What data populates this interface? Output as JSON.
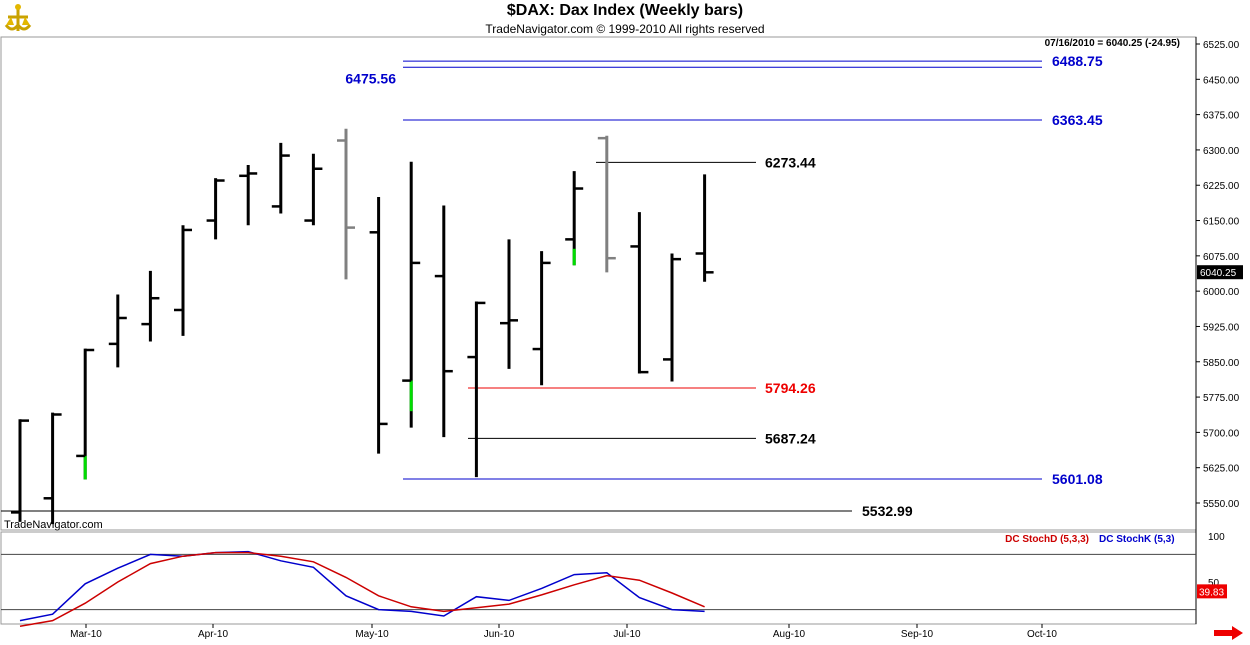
{
  "header": {
    "title": "$DAX:  Dax Index  (Weekly bars)",
    "copyright": "TradeNavigator.com © 1999-2010 All rights reserved"
  },
  "quote_label": "07/16/2010 = 6040.25 (-24.95)",
  "watermark": "TradeNavigator.com",
  "current_price_tag": "6040.25",
  "colors": {
    "bar": "#000000",
    "bar_gray": "#808080",
    "bar_green": "#00dd00",
    "level_blue": "#0000cc",
    "level_red": "#ee0000",
    "level_black": "#000000",
    "stoch_k": "#0000cc",
    "stoch_d": "#cc0000",
    "axis_tag": "#000000",
    "stoch_tag_bg": "#ee0000"
  },
  "chart_data": [
    {
      "type": "ohlc",
      "y_axis": {
        "range": [
          5500,
          6540
        ],
        "ticks": [
          "6525.00",
          "6450.00",
          "6375.00",
          "6300.00",
          "6225.00",
          "6150.00",
          "6075.00",
          "6000.00",
          "5925.00",
          "5850.00",
          "5775.00",
          "5700.00",
          "5625.00",
          "5550.00"
        ]
      },
      "x_axis": {
        "ticks": [
          "Mar-10",
          "Apr-10",
          "May-10",
          "Jun-10",
          "Jul-10",
          "Aug-10",
          "Sep-10",
          "Oct-10"
        ]
      },
      "bars": [
        {
          "o": 5530,
          "h": 5728,
          "l": 5510,
          "c": 5725,
          "color": "black"
        },
        {
          "o": 5560,
          "h": 5742,
          "l": 5505,
          "c": 5738,
          "color": "black"
        },
        {
          "o": 5650,
          "h": 5878,
          "l": 5600,
          "c": 5875,
          "color": "black",
          "green_from": 5650
        },
        {
          "o": 5888,
          "h": 5993,
          "l": 5838,
          "c": 5943,
          "color": "black"
        },
        {
          "o": 5930,
          "h": 6043,
          "l": 5893,
          "c": 5985,
          "color": "black"
        },
        {
          "o": 5960,
          "h": 6140,
          "l": 5905,
          "c": 6130,
          "color": "black"
        },
        {
          "o": 6150,
          "h": 6240,
          "l": 6110,
          "c": 6235,
          "color": "black"
        },
        {
          "o": 6245,
          "h": 6268,
          "l": 6140,
          "c": 6250,
          "color": "black"
        },
        {
          "o": 6180,
          "h": 6315,
          "l": 6165,
          "c": 6288,
          "color": "black"
        },
        {
          "o": 6150,
          "h": 6292,
          "l": 6140,
          "c": 6260,
          "color": "black"
        },
        {
          "o": 6320,
          "h": 6345,
          "l": 6025,
          "c": 6135,
          "color": "gray"
        },
        {
          "o": 6125,
          "h": 6200,
          "l": 5655,
          "c": 5718,
          "color": "black"
        },
        {
          "o": 5810,
          "h": 6275,
          "l": 5710,
          "c": 6060,
          "color": "black",
          "green_from": 5810
        },
        {
          "o": 6032,
          "h": 6182,
          "l": 5690,
          "c": 5830,
          "color": "black"
        },
        {
          "o": 5860,
          "h": 5978,
          "l": 5605,
          "c": 5975,
          "color": "black"
        },
        {
          "o": 5932,
          "h": 6110,
          "l": 5835,
          "c": 5938,
          "color": "black"
        },
        {
          "o": 5877,
          "h": 6085,
          "l": 5800,
          "c": 6060,
          "color": "black"
        },
        {
          "o": 6110,
          "h": 6255,
          "l": 6055,
          "c": 6218,
          "color": "black",
          "green_from": 6090
        },
        {
          "o": 6325,
          "h": 6330,
          "l": 6040,
          "c": 6070,
          "color": "gray"
        },
        {
          "o": 6095,
          "h": 6168,
          "l": 5825,
          "c": 5828,
          "color": "black"
        },
        {
          "o": 5855,
          "h": 6080,
          "l": 5808,
          "c": 6068,
          "color": "black"
        },
        {
          "o": 6080,
          "h": 6248,
          "l": 6020,
          "c": 6040,
          "color": "black"
        }
      ],
      "levels": [
        {
          "value": "6475.56",
          "color": "blue",
          "side": "left"
        },
        {
          "value": "6488.75",
          "color": "blue",
          "side": "right"
        },
        {
          "value": "6363.45",
          "color": "blue",
          "side": "right"
        },
        {
          "value": "6273.44",
          "color": "black",
          "side": "right"
        },
        {
          "value": "5794.26",
          "color": "red",
          "side": "right"
        },
        {
          "value": "5687.24",
          "color": "black",
          "side": "right"
        },
        {
          "value": "5601.08",
          "color": "blue",
          "side": "right"
        },
        {
          "value": "5532.99",
          "color": "black",
          "side": "right"
        }
      ]
    },
    {
      "type": "line",
      "y_axis": {
        "range": [
          0,
          100
        ],
        "ticks": [
          "100",
          "50"
        ],
        "guides": [
          80,
          20
        ]
      },
      "legend": [
        "DC StochD (5,3,3)",
        "DC StochK (5,3)"
      ],
      "series": [
        {
          "name": "DC StochK (5,3)",
          "color": "blue",
          "values": [
            8,
            15,
            48,
            65,
            80,
            78,
            82,
            83,
            73,
            66,
            35,
            20,
            18,
            13,
            34,
            30,
            43,
            58,
            60,
            33,
            20,
            18
          ]
        },
        {
          "name": "DC StochD (5,3,3)",
          "color": "red",
          "values": [
            2,
            8,
            27,
            50,
            70,
            78,
            82,
            82,
            78,
            72,
            55,
            35,
            23,
            18,
            22,
            26,
            36,
            47,
            57,
            52,
            38,
            23
          ]
        }
      ],
      "value_tags": [
        "39.83"
      ]
    }
  ]
}
